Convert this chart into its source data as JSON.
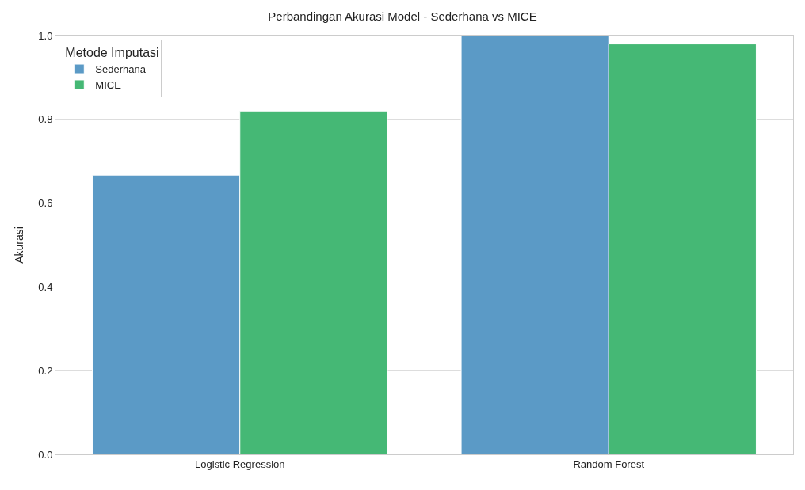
{
  "chart_data": {
    "type": "bar",
    "title": "Perbandingan Akurasi Model - Sederhana vs MICE",
    "ylabel": "Akurasi",
    "legend_title": "Metode Imputasi",
    "categories": [
      "Logistic Regression",
      "Random Forest"
    ],
    "series": [
      {
        "name": "Sederhana",
        "color": "#5b9ac6",
        "values": [
          0.667,
          1.0
        ]
      },
      {
        "name": "MICE",
        "color": "#45b875",
        "values": [
          0.82,
          0.98
        ]
      }
    ],
    "ylim": [
      0,
      1.0
    ],
    "yticks": [
      {
        "value": 0,
        "label": "0.0"
      },
      {
        "value": 0.2,
        "label": "0.2"
      },
      {
        "value": 0.4,
        "label": "0.4"
      },
      {
        "value": 0.6,
        "label": "0.6"
      },
      {
        "value": 0.8,
        "label": "0.8"
      },
      {
        "value": 1.0,
        "label": "1.0"
      }
    ],
    "grid": "y",
    "legend": "top left"
  }
}
